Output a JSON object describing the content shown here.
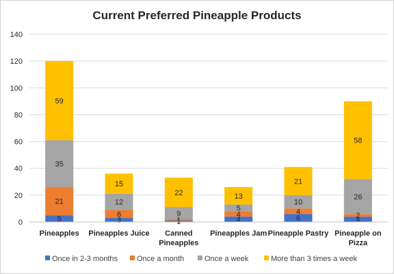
{
  "chart_data": {
    "type": "bar",
    "stacked": true,
    "title": "Current Preferred Pineapple Products",
    "categories": [
      [
        "Pineapples"
      ],
      [
        "Pineapples Juice"
      ],
      [
        "Canned",
        "Pineapples"
      ],
      [
        "Pineapples Jam"
      ],
      [
        "Pineapple Pastry"
      ],
      [
        "Pineapple on",
        "Pizza"
      ]
    ],
    "series": [
      {
        "name": "Once in 2-3 months",
        "color": "#4472C4",
        "values": [
          5,
          3,
          1,
          4,
          6,
          4
        ]
      },
      {
        "name": "Once a month",
        "color": "#ED7D31",
        "values": [
          21,
          6,
          1,
          4,
          4,
          2
        ]
      },
      {
        "name": "Once a week",
        "color": "#A5A5A5",
        "values": [
          35,
          12,
          9,
          5,
          10,
          26
        ]
      },
      {
        "name": "More than 3 times a week",
        "color": "#FFC000",
        "values": [
          59,
          15,
          22,
          13,
          21,
          58
        ]
      }
    ],
    "ylim": [
      0,
      140
    ],
    "yticks": [
      0,
      20,
      40,
      60,
      80,
      100,
      120,
      140
    ],
    "grid": true,
    "legend": "bottom"
  }
}
